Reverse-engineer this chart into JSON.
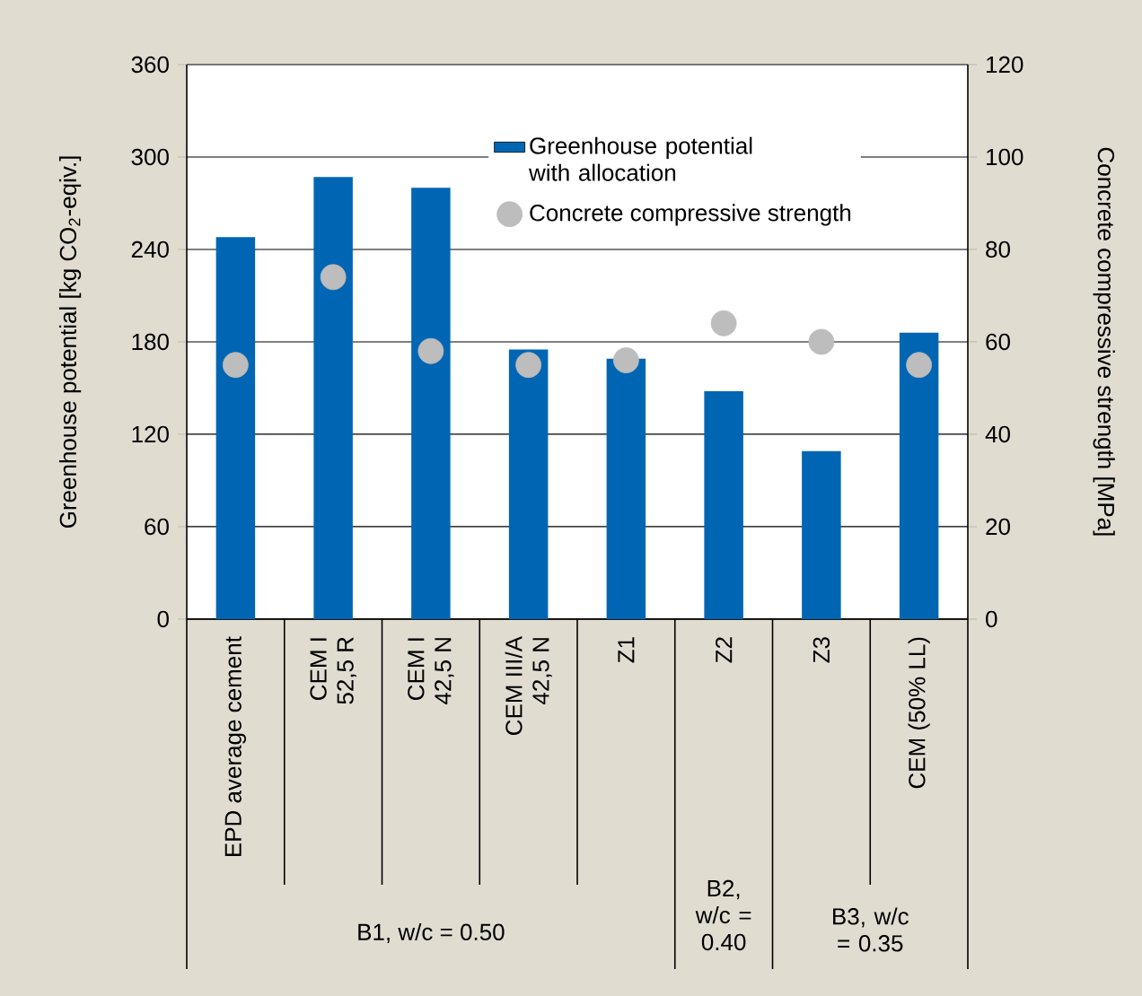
{
  "chart_data": {
    "type": "bar",
    "categories": [
      "EPD average cement",
      "CEM I 52,5 R",
      "CEM I 42,5 N",
      "CEM III/A 42,5 N",
      "Z1",
      "Z2",
      "Z3",
      "CEM (50% LL)"
    ],
    "series": [
      {
        "name": "Greenhouse potential with allocation",
        "color": "#0066b3",
        "values": [
          248,
          287,
          280,
          175,
          169,
          148,
          109,
          186
        ]
      },
      {
        "name": "Concrete compressive strength",
        "type": "scatter",
        "axis": "y2",
        "color": "#bdbdbd",
        "values": [
          55,
          74,
          58,
          55,
          56,
          64,
          60,
          55
        ]
      }
    ],
    "ylabel": "Greenhouse potential [kg CO$_{2}$-eqiv.]",
    "y2label": "Concrete compressive strength [MPa]",
    "ylim": [
      0,
      360
    ],
    "yticks": [
      0,
      60,
      120,
      180,
      240,
      300,
      360
    ],
    "y2lim": [
      0,
      120
    ],
    "y2ticks": [
      0,
      20,
      40,
      60,
      80,
      100,
      120
    ],
    "grid": "y",
    "legend": "top right",
    "annotations": [
      "B1, w/c = 0.50",
      "B2, w/c = 0.40",
      "B3, w/c = 0.35"
    ]
  }
}
